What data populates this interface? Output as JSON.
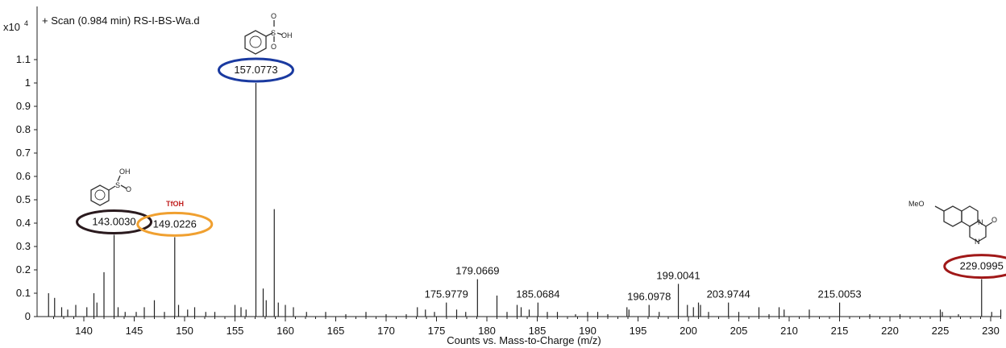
{
  "chart_data": {
    "type": "bar",
    "title": "+ Scan (0.984 min) RS-I-BS-Wa.d",
    "y_multiplier": "x10",
    "y_exponent": "4",
    "xlabel": "Counts vs. Mass-to-Charge (m/z)",
    "ylabel": "",
    "xlim": [
      136.5,
      232.0
    ],
    "ylim": [
      0,
      1.2
    ],
    "xticks": [
      "140",
      "145",
      "150",
      "155",
      "160",
      "165",
      "170",
      "175",
      "180",
      "185",
      "190",
      "195",
      "200",
      "205",
      "210",
      "215",
      "220",
      "225",
      "230"
    ],
    "yticks": [
      "0",
      "0.1",
      "0.2",
      "0.3",
      "0.4",
      "0.5",
      "0.6",
      "0.7",
      "0.8",
      "0.9",
      "1",
      "1.1"
    ],
    "peaks": [
      {
        "mz": 136.5,
        "intensity": 0.1
      },
      {
        "mz": 137.1,
        "intensity": 0.08
      },
      {
        "mz": 137.8,
        "intensity": 0.04
      },
      {
        "mz": 138.4,
        "intensity": 0.03
      },
      {
        "mz": 139.2,
        "intensity": 0.05
      },
      {
        "mz": 140.3,
        "intensity": 0.04
      },
      {
        "mz": 141.0,
        "intensity": 0.1
      },
      {
        "mz": 141.3,
        "intensity": 0.06
      },
      {
        "mz": 142.0,
        "intensity": 0.19
      },
      {
        "mz": 143.003,
        "intensity": 0.35
      },
      {
        "mz": 143.4,
        "intensity": 0.04
      },
      {
        "mz": 144.1,
        "intensity": 0.02
      },
      {
        "mz": 145.2,
        "intensity": 0.02
      },
      {
        "mz": 146.0,
        "intensity": 0.04
      },
      {
        "mz": 147.0,
        "intensity": 0.07
      },
      {
        "mz": 148.0,
        "intensity": 0.02
      },
      {
        "mz": 149.0226,
        "intensity": 0.34
      },
      {
        "mz": 149.4,
        "intensity": 0.05
      },
      {
        "mz": 150.3,
        "intensity": 0.03
      },
      {
        "mz": 151.0,
        "intensity": 0.04
      },
      {
        "mz": 152.1,
        "intensity": 0.02
      },
      {
        "mz": 153.0,
        "intensity": 0.02
      },
      {
        "mz": 155.0,
        "intensity": 0.05
      },
      {
        "mz": 155.6,
        "intensity": 0.04
      },
      {
        "mz": 156.1,
        "intensity": 0.03
      },
      {
        "mz": 157.0773,
        "intensity": 1.0
      },
      {
        "mz": 157.8,
        "intensity": 0.12
      },
      {
        "mz": 158.1,
        "intensity": 0.07
      },
      {
        "mz": 158.9,
        "intensity": 0.46
      },
      {
        "mz": 159.3,
        "intensity": 0.06
      },
      {
        "mz": 160.0,
        "intensity": 0.05
      },
      {
        "mz": 160.8,
        "intensity": 0.04
      },
      {
        "mz": 162.1,
        "intensity": 0.02
      },
      {
        "mz": 164.0,
        "intensity": 0.02
      },
      {
        "mz": 166.0,
        "intensity": 0.01
      },
      {
        "mz": 168.0,
        "intensity": 0.02
      },
      {
        "mz": 170.0,
        "intensity": 0.01
      },
      {
        "mz": 172.0,
        "intensity": 0.01
      },
      {
        "mz": 173.1,
        "intensity": 0.04
      },
      {
        "mz": 173.9,
        "intensity": 0.03
      },
      {
        "mz": 174.8,
        "intensity": 0.02
      },
      {
        "mz": 175.9779,
        "intensity": 0.06
      },
      {
        "mz": 177.0,
        "intensity": 0.03
      },
      {
        "mz": 177.9,
        "intensity": 0.02
      },
      {
        "mz": 179.0669,
        "intensity": 0.16
      },
      {
        "mz": 181.0,
        "intensity": 0.09
      },
      {
        "mz": 182.0,
        "intensity": 0.02
      },
      {
        "mz": 183.0,
        "intensity": 0.05
      },
      {
        "mz": 183.4,
        "intensity": 0.04
      },
      {
        "mz": 184.2,
        "intensity": 0.03
      },
      {
        "mz": 185.0684,
        "intensity": 0.06
      },
      {
        "mz": 186.0,
        "intensity": 0.02
      },
      {
        "mz": 187.0,
        "intensity": 0.02
      },
      {
        "mz": 188.8,
        "intensity": 0.01
      },
      {
        "mz": 190.0,
        "intensity": 0.02
      },
      {
        "mz": 191.0,
        "intensity": 0.02
      },
      {
        "mz": 192.0,
        "intensity": 0.01
      },
      {
        "mz": 193.9,
        "intensity": 0.04
      },
      {
        "mz": 194.1,
        "intensity": 0.03
      },
      {
        "mz": 196.0978,
        "intensity": 0.05
      },
      {
        "mz": 197.1,
        "intensity": 0.02
      },
      {
        "mz": 199.0041,
        "intensity": 0.14
      },
      {
        "mz": 199.9,
        "intensity": 0.05
      },
      {
        "mz": 200.5,
        "intensity": 0.04
      },
      {
        "mz": 201.0,
        "intensity": 0.06
      },
      {
        "mz": 201.2,
        "intensity": 0.05
      },
      {
        "mz": 202.0,
        "intensity": 0.02
      },
      {
        "mz": 203.9744,
        "intensity": 0.06
      },
      {
        "mz": 205.0,
        "intensity": 0.02
      },
      {
        "mz": 207.0,
        "intensity": 0.04
      },
      {
        "mz": 208.0,
        "intensity": 0.01
      },
      {
        "mz": 209.0,
        "intensity": 0.04
      },
      {
        "mz": 209.5,
        "intensity": 0.03
      },
      {
        "mz": 212.0,
        "intensity": 0.03
      },
      {
        "mz": 215.0053,
        "intensity": 0.06
      },
      {
        "mz": 218.0,
        "intensity": 0.01
      },
      {
        "mz": 221.0,
        "intensity": 0.01
      },
      {
        "mz": 225.0,
        "intensity": 0.03
      },
      {
        "mz": 225.2,
        "intensity": 0.02
      },
      {
        "mz": 226.8,
        "intensity": 0.01
      },
      {
        "mz": 229.0995,
        "intensity": 0.16
      },
      {
        "mz": 230.1,
        "intensity": 0.02
      },
      {
        "mz": 231.0,
        "intensity": 0.03
      }
    ],
    "labeled_peaks": [
      {
        "mz": 143.003,
        "label": "143.0030",
        "circle_color": "#2a1a1e"
      },
      {
        "mz": 149.0226,
        "label": "149.0226",
        "circle_color": "#f0a030"
      },
      {
        "mz": 157.0773,
        "label": "157.0773",
        "circle_color": "#1a3aa0"
      },
      {
        "mz": 175.9779,
        "label": "175.9779"
      },
      {
        "mz": 179.0669,
        "label": "179.0669"
      },
      {
        "mz": 185.0684,
        "label": "185.0684"
      },
      {
        "mz": 196.0978,
        "label": "196.0978"
      },
      {
        "mz": 199.0041,
        "label": "199.0041"
      },
      {
        "mz": 203.9744,
        "label": "203.9744"
      },
      {
        "mz": 215.0053,
        "label": "215.0053"
      },
      {
        "mz": 229.0995,
        "label": "229.0995",
        "circle_color": "#a01818"
      }
    ],
    "annotations": {
      "tfoh_label": "TfOH",
      "methoxy_label": "MeO",
      "structure_atoms": [
        "O",
        "S",
        "O",
        "OH",
        "S",
        "O",
        "OH",
        "O",
        "N",
        "N"
      ]
    },
    "grid": false,
    "legend": "none"
  },
  "colors": {
    "axis": "#222222",
    "peak": "#222222",
    "tfoh_text": "#c02020",
    "structure": "#333333",
    "atom_red": "#c02020",
    "atom_blue": "#1a3aa0"
  }
}
